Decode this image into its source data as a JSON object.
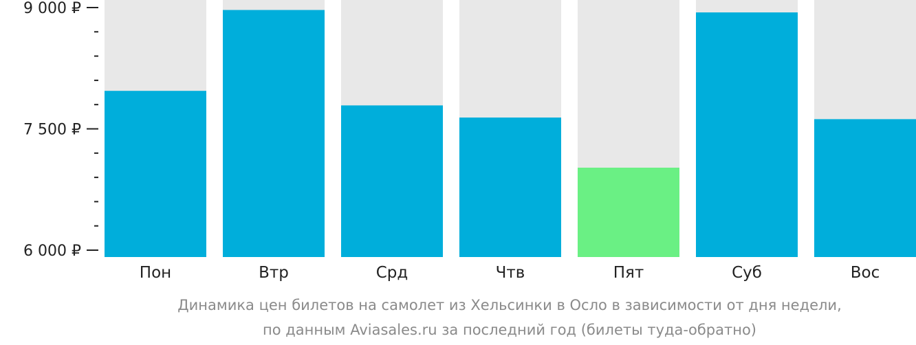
{
  "chart_data": {
    "type": "bar",
    "categories": [
      "Пон",
      "Втр",
      "Срд",
      "Чтв",
      "Пят",
      "Суб",
      "Вос"
    ],
    "values": [
      7970,
      8970,
      7790,
      7640,
      7020,
      8940,
      7620
    ],
    "highlight_index": 4,
    "ylim": [
      6000,
      9000
    ],
    "yticks": [
      {
        "value": 9000,
        "label": "9 000 ₽"
      },
      {
        "value": 7500,
        "label": "7 500 ₽"
      },
      {
        "value": 6000,
        "label": "6 000 ₽"
      }
    ],
    "colors": {
      "bar": "#00AEDB",
      "highlight": "#6AF084",
      "background_bar": "#E8E8E8",
      "text": "#222222"
    },
    "caption_lines": [
      "Динамика цен билетов на самолет из Хельсинки в Осло в зависимости от дня недели,",
      "по данным Aviasales.ru за последний год (билеты туда-обратно)"
    ]
  }
}
